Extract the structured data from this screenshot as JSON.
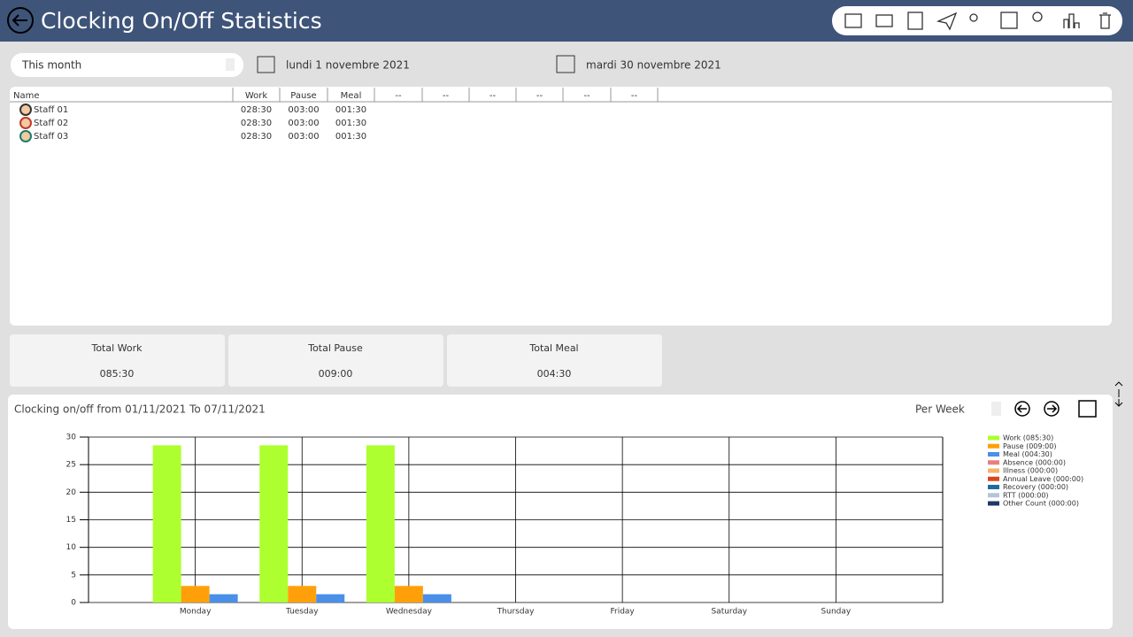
{
  "header": {
    "title": "Clocking On/Off Statistics"
  },
  "filters": {
    "period": "This month",
    "start_date": "lundi 1 novembre 2021",
    "end_date": "mardi 30 novembre 2021"
  },
  "table": {
    "columns": [
      "Name",
      "Work",
      "Pause",
      "Meal",
      "--",
      "--",
      "--",
      "--",
      "--",
      "--"
    ],
    "rows": [
      [
        "Staff 01",
        "028:30",
        "003:00",
        "001:30"
      ],
      [
        "Staff 02",
        "028:30",
        "003:00",
        "001:30"
      ],
      [
        "Staff 03",
        "028:30",
        "003:00",
        "001:30"
      ]
    ]
  },
  "totals": [
    {
      "label": "Total Work",
      "value": "085:30"
    },
    {
      "label": "Total Pause",
      "value": "009:00"
    },
    {
      "label": "Total Meal",
      "value": "004:30"
    }
  ],
  "chart_panel": {
    "title": "Clocking on/off from 01/11/2021 To 07/11/2021",
    "grouping": "Per Week"
  },
  "chart_data": {
    "type": "bar",
    "categories": [
      "Monday",
      "Tuesday",
      "Wednesday",
      "Thursday",
      "Friday",
      "Saturday",
      "Sunday"
    ],
    "series": [
      {
        "name": "Work (085:30)",
        "color": "#adff2f",
        "values": [
          28.5,
          28.5,
          28.5,
          0,
          0,
          0,
          0
        ]
      },
      {
        "name": "Pause (009:00)",
        "color": "#ffa00a",
        "values": [
          3,
          3,
          3,
          0,
          0,
          0,
          0
        ]
      },
      {
        "name": "Meal (004:30)",
        "color": "#4a8fe8",
        "values": [
          1.5,
          1.5,
          1.5,
          0,
          0,
          0,
          0
        ]
      },
      {
        "name": "Absence (000:00)",
        "color": "#e88080",
        "values": [
          0,
          0,
          0,
          0,
          0,
          0,
          0
        ]
      },
      {
        "name": "Illness (000:00)",
        "color": "#f6b26b",
        "values": [
          0,
          0,
          0,
          0,
          0,
          0,
          0
        ]
      },
      {
        "name": "Annual Leave (000:00)",
        "color": "#d9481c",
        "values": [
          0,
          0,
          0,
          0,
          0,
          0,
          0
        ]
      },
      {
        "name": "Recovery (000:00)",
        "color": "#1f6aa5",
        "values": [
          0,
          0,
          0,
          0,
          0,
          0,
          0
        ]
      },
      {
        "name": "RTT (000:00)",
        "color": "#b8c4d6",
        "values": [
          0,
          0,
          0,
          0,
          0,
          0,
          0
        ]
      },
      {
        "name": "Other Count (000:00)",
        "color": "#1f3864",
        "values": [
          0,
          0,
          0,
          0,
          0,
          0,
          0
        ]
      }
    ],
    "ylim": [
      0,
      30
    ],
    "yticks": [
      0,
      5,
      10,
      15,
      20,
      25,
      30
    ],
    "grid": true,
    "legend": "right"
  }
}
